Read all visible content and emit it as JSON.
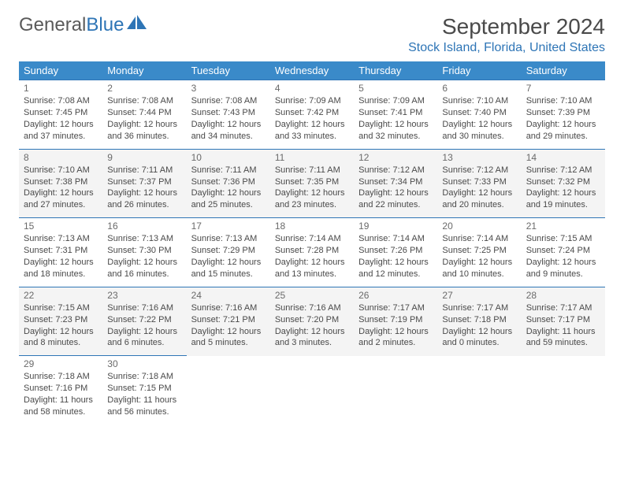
{
  "logo": {
    "part1": "General",
    "part2": "Blue"
  },
  "header": {
    "month_title": "September 2024",
    "location": "Stock Island, Florida, United States"
  },
  "colors": {
    "header_bg": "#3a8ac9",
    "accent": "#2e75b6",
    "row_alt_bg": "#f4f4f4",
    "text": "#4a4a4a"
  },
  "calendar": {
    "type": "table",
    "columns": [
      "Sunday",
      "Monday",
      "Tuesday",
      "Wednesday",
      "Thursday",
      "Friday",
      "Saturday"
    ],
    "days": [
      {
        "n": "1",
        "sr": "7:08 AM",
        "ss": "7:45 PM",
        "dl": "12 hours and 37 minutes."
      },
      {
        "n": "2",
        "sr": "7:08 AM",
        "ss": "7:44 PM",
        "dl": "12 hours and 36 minutes."
      },
      {
        "n": "3",
        "sr": "7:08 AM",
        "ss": "7:43 PM",
        "dl": "12 hours and 34 minutes."
      },
      {
        "n": "4",
        "sr": "7:09 AM",
        "ss": "7:42 PM",
        "dl": "12 hours and 33 minutes."
      },
      {
        "n": "5",
        "sr": "7:09 AM",
        "ss": "7:41 PM",
        "dl": "12 hours and 32 minutes."
      },
      {
        "n": "6",
        "sr": "7:10 AM",
        "ss": "7:40 PM",
        "dl": "12 hours and 30 minutes."
      },
      {
        "n": "7",
        "sr": "7:10 AM",
        "ss": "7:39 PM",
        "dl": "12 hours and 29 minutes."
      },
      {
        "n": "8",
        "sr": "7:10 AM",
        "ss": "7:38 PM",
        "dl": "12 hours and 27 minutes."
      },
      {
        "n": "9",
        "sr": "7:11 AM",
        "ss": "7:37 PM",
        "dl": "12 hours and 26 minutes."
      },
      {
        "n": "10",
        "sr": "7:11 AM",
        "ss": "7:36 PM",
        "dl": "12 hours and 25 minutes."
      },
      {
        "n": "11",
        "sr": "7:11 AM",
        "ss": "7:35 PM",
        "dl": "12 hours and 23 minutes."
      },
      {
        "n": "12",
        "sr": "7:12 AM",
        "ss": "7:34 PM",
        "dl": "12 hours and 22 minutes."
      },
      {
        "n": "13",
        "sr": "7:12 AM",
        "ss": "7:33 PM",
        "dl": "12 hours and 20 minutes."
      },
      {
        "n": "14",
        "sr": "7:12 AM",
        "ss": "7:32 PM",
        "dl": "12 hours and 19 minutes."
      },
      {
        "n": "15",
        "sr": "7:13 AM",
        "ss": "7:31 PM",
        "dl": "12 hours and 18 minutes."
      },
      {
        "n": "16",
        "sr": "7:13 AM",
        "ss": "7:30 PM",
        "dl": "12 hours and 16 minutes."
      },
      {
        "n": "17",
        "sr": "7:13 AM",
        "ss": "7:29 PM",
        "dl": "12 hours and 15 minutes."
      },
      {
        "n": "18",
        "sr": "7:14 AM",
        "ss": "7:28 PM",
        "dl": "12 hours and 13 minutes."
      },
      {
        "n": "19",
        "sr": "7:14 AM",
        "ss": "7:26 PM",
        "dl": "12 hours and 12 minutes."
      },
      {
        "n": "20",
        "sr": "7:14 AM",
        "ss": "7:25 PM",
        "dl": "12 hours and 10 minutes."
      },
      {
        "n": "21",
        "sr": "7:15 AM",
        "ss": "7:24 PM",
        "dl": "12 hours and 9 minutes."
      },
      {
        "n": "22",
        "sr": "7:15 AM",
        "ss": "7:23 PM",
        "dl": "12 hours and 8 minutes."
      },
      {
        "n": "23",
        "sr": "7:16 AM",
        "ss": "7:22 PM",
        "dl": "12 hours and 6 minutes."
      },
      {
        "n": "24",
        "sr": "7:16 AM",
        "ss": "7:21 PM",
        "dl": "12 hours and 5 minutes."
      },
      {
        "n": "25",
        "sr": "7:16 AM",
        "ss": "7:20 PM",
        "dl": "12 hours and 3 minutes."
      },
      {
        "n": "26",
        "sr": "7:17 AM",
        "ss": "7:19 PM",
        "dl": "12 hours and 2 minutes."
      },
      {
        "n": "27",
        "sr": "7:17 AM",
        "ss": "7:18 PM",
        "dl": "12 hours and 0 minutes."
      },
      {
        "n": "28",
        "sr": "7:17 AM",
        "ss": "7:17 PM",
        "dl": "11 hours and 59 minutes."
      },
      {
        "n": "29",
        "sr": "7:18 AM",
        "ss": "7:16 PM",
        "dl": "11 hours and 58 minutes."
      },
      {
        "n": "30",
        "sr": "7:18 AM",
        "ss": "7:15 PM",
        "dl": "11 hours and 56 minutes."
      }
    ],
    "labels": {
      "sunrise": "Sunrise: ",
      "sunset": "Sunset: ",
      "daylight": "Daylight: "
    }
  }
}
